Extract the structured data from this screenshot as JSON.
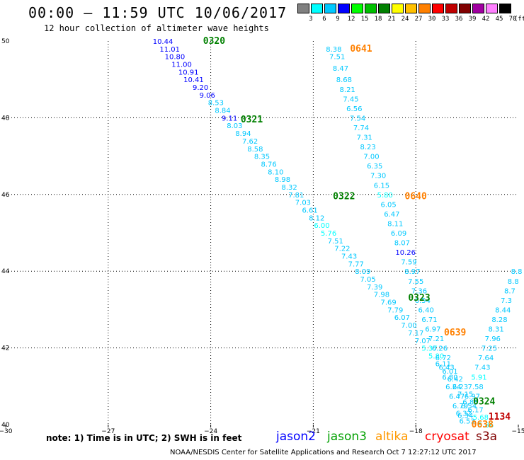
{
  "header": {
    "title": "00:00 – 11:59 UTC 10/06/2017",
    "subtitle": "12 hour collection of altimeter wave heights"
  },
  "colorbar": {
    "colors": [
      "#808080",
      "#00ffff",
      "#00c8ff",
      "#0000ff",
      "#00ff00",
      "#00c000",
      "#008000",
      "#ffff00",
      "#ffc000",
      "#ff8000",
      "#ff0000",
      "#c00000",
      "#800000",
      "#a000a0",
      "#ff80ff",
      "#000000"
    ],
    "labels": [
      "3",
      "6",
      "9",
      "12",
      "15",
      "18",
      "21",
      "24",
      "27",
      "30",
      "33",
      "36",
      "39",
      "42",
      "45",
      "70",
      "(ft)"
    ]
  },
  "map": {
    "xticks": [
      {
        "lon": -30,
        "label": "−30"
      },
      {
        "lon": -27,
        "label": "−27"
      },
      {
        "lon": -24,
        "label": "−24"
      },
      {
        "lon": -21,
        "label": "−21"
      },
      {
        "lon": -18,
        "label": "−18"
      },
      {
        "lon": -15,
        "label": "−15"
      }
    ],
    "yticks": [
      {
        "lat": 50,
        "label": "50"
      },
      {
        "lat": 48,
        "label": "48"
      },
      {
        "lat": 46,
        "label": "46"
      },
      {
        "lat": 44,
        "label": "44"
      },
      {
        "lat": 42,
        "label": "42"
      },
      {
        "lat": 40,
        "label": "40"
      }
    ],
    "observations": [
      {
        "lon": -25.4,
        "lat": 50.0,
        "t": "10.44",
        "c": "#0000ff"
      },
      {
        "lon": -25.2,
        "lat": 49.8,
        "t": "11.01",
        "c": "#0000ff"
      },
      {
        "lon": -25.05,
        "lat": 49.6,
        "t": "10.80",
        "c": "#0000ff"
      },
      {
        "lon": -24.85,
        "lat": 49.4,
        "t": "11.00",
        "c": "#0000ff"
      },
      {
        "lon": -24.65,
        "lat": 49.2,
        "t": "10.91",
        "c": "#0000ff"
      },
      {
        "lon": -24.5,
        "lat": 49.0,
        "t": "10.41",
        "c": "#0000ff"
      },
      {
        "lon": -24.3,
        "lat": 48.8,
        "t": "9.20",
        "c": "#0000ff"
      },
      {
        "lon": -24.1,
        "lat": 48.6,
        "t": "9.06",
        "c": "#0000ff"
      },
      {
        "lon": -23.85,
        "lat": 48.4,
        "t": "8.53",
        "c": "#00c8ff"
      },
      {
        "lon": -23.65,
        "lat": 48.2,
        "t": "8.84",
        "c": "#00c8ff"
      },
      {
        "lon": -23.45,
        "lat": 48.0,
        "t": "9.11",
        "c": "#0000ff"
      },
      {
        "lon": -23.3,
        "lat": 47.8,
        "t": "8.03",
        "c": "#00c8ff"
      },
      {
        "lon": -23.05,
        "lat": 47.6,
        "t": "8.94",
        "c": "#00c8ff"
      },
      {
        "lon": -22.85,
        "lat": 47.4,
        "t": "7.62",
        "c": "#00c8ff"
      },
      {
        "lon": -22.7,
        "lat": 47.2,
        "t": "8.58",
        "c": "#00c8ff"
      },
      {
        "lon": -22.5,
        "lat": 47.0,
        "t": "8.35",
        "c": "#00c8ff"
      },
      {
        "lon": -22.3,
        "lat": 46.8,
        "t": "8.76",
        "c": "#00c8ff"
      },
      {
        "lon": -22.1,
        "lat": 46.6,
        "t": "8.10",
        "c": "#00c8ff"
      },
      {
        "lon": -21.9,
        "lat": 46.4,
        "t": "8.98",
        "c": "#00c8ff"
      },
      {
        "lon": -21.7,
        "lat": 46.2,
        "t": "8.32",
        "c": "#00c8ff"
      },
      {
        "lon": -21.5,
        "lat": 46.0,
        "t": "7.81",
        "c": "#00c8ff"
      },
      {
        "lon": -21.3,
        "lat": 45.8,
        "t": "7.03",
        "c": "#00c8ff"
      },
      {
        "lon": -21.1,
        "lat": 45.6,
        "t": "6.61",
        "c": "#00c8ff"
      },
      {
        "lon": -20.9,
        "lat": 45.4,
        "t": "8.12",
        "c": "#00c8ff"
      },
      {
        "lon": -20.75,
        "lat": 45.2,
        "t": "6.00",
        "c": "#00ffff"
      },
      {
        "lon": -20.55,
        "lat": 45.0,
        "t": "5.76",
        "c": "#00ffff"
      },
      {
        "lon": -20.35,
        "lat": 44.8,
        "t": "7.51",
        "c": "#00c8ff"
      },
      {
        "lon": -20.15,
        "lat": 44.6,
        "t": "7.22",
        "c": "#00c8ff"
      },
      {
        "lon": -19.95,
        "lat": 44.4,
        "t": "7.43",
        "c": "#00c8ff"
      },
      {
        "lon": -19.75,
        "lat": 44.2,
        "t": "7.77",
        "c": "#00c8ff"
      },
      {
        "lon": -19.55,
        "lat": 44.0,
        "t": "8.09",
        "c": "#00c8ff"
      },
      {
        "lon": -19.4,
        "lat": 43.8,
        "t": "7.05",
        "c": "#00c8ff"
      },
      {
        "lon": -19.2,
        "lat": 43.6,
        "t": "7.39",
        "c": "#00c8ff"
      },
      {
        "lon": -19.0,
        "lat": 43.4,
        "t": "7.98",
        "c": "#00c8ff"
      },
      {
        "lon": -18.8,
        "lat": 43.2,
        "t": "7.69",
        "c": "#00c8ff"
      },
      {
        "lon": -18.6,
        "lat": 43.0,
        "t": "7.79",
        "c": "#00c8ff"
      },
      {
        "lon": -18.4,
        "lat": 42.8,
        "t": "6.07",
        "c": "#00c8ff"
      },
      {
        "lon": -18.2,
        "lat": 42.6,
        "t": "7.00",
        "c": "#00c8ff"
      },
      {
        "lon": -18.0,
        "lat": 42.4,
        "t": "7.17",
        "c": "#00c8ff"
      },
      {
        "lon": -17.8,
        "lat": 42.2,
        "t": "7.07",
        "c": "#00c8ff"
      },
      {
        "lon": -17.6,
        "lat": 42.0,
        "t": "5.37",
        "c": "#00ffff"
      },
      {
        "lon": -17.4,
        "lat": 41.8,
        "t": "5.80",
        "c": "#00ffff"
      },
      {
        "lon": -17.2,
        "lat": 41.6,
        "t": "6.11",
        "c": "#00c8ff"
      },
      {
        "lon": -17.0,
        "lat": 41.4,
        "t": "6.01",
        "c": "#00c8ff"
      },
      {
        "lon": -16.85,
        "lat": 41.2,
        "t": "6.42",
        "c": "#00c8ff"
      },
      {
        "lon": -16.7,
        "lat": 41.0,
        "t": "6.23",
        "c": "#00c8ff"
      },
      {
        "lon": -16.55,
        "lat": 40.8,
        "t": "7.15",
        "c": "#00c8ff"
      },
      {
        "lon": -16.4,
        "lat": 40.6,
        "t": "6.88",
        "c": "#00c8ff"
      },
      {
        "lon": -16.25,
        "lat": 40.4,
        "t": "6.17",
        "c": "#00c8ff"
      },
      {
        "lon": -16.1,
        "lat": 40.2,
        "t": "5.68",
        "c": "#00ffff"
      },
      {
        "lon": -15.95,
        "lat": 40.0,
        "t": "5.86",
        "c": "#00ffff"
      },
      {
        "lon": -20.4,
        "lat": 49.8,
        "t": "8.38",
        "c": "#00c8ff"
      },
      {
        "lon": -20.3,
        "lat": 49.6,
        "t": "7.51",
        "c": "#00c8ff"
      },
      {
        "lon": -20.2,
        "lat": 49.3,
        "t": "8.47",
        "c": "#00c8ff"
      },
      {
        "lon": -20.1,
        "lat": 49.0,
        "t": "8.68",
        "c": "#00c8ff"
      },
      {
        "lon": -20.0,
        "lat": 48.75,
        "t": "8.21",
        "c": "#00c8ff"
      },
      {
        "lon": -19.9,
        "lat": 48.5,
        "t": "7.45",
        "c": "#00c8ff"
      },
      {
        "lon": -19.8,
        "lat": 48.25,
        "t": "6.56",
        "c": "#00c8ff"
      },
      {
        "lon": -19.7,
        "lat": 48.0,
        "t": "7.54",
        "c": "#00c8ff"
      },
      {
        "lon": -19.6,
        "lat": 47.75,
        "t": "7.74",
        "c": "#00c8ff"
      },
      {
        "lon": -19.5,
        "lat": 47.5,
        "t": "7.31",
        "c": "#00c8ff"
      },
      {
        "lon": -19.4,
        "lat": 47.25,
        "t": "8.23",
        "c": "#00c8ff"
      },
      {
        "lon": -19.3,
        "lat": 47.0,
        "t": "7.00",
        "c": "#00c8ff"
      },
      {
        "lon": -19.2,
        "lat": 46.75,
        "t": "6.35",
        "c": "#00c8ff"
      },
      {
        "lon": -19.1,
        "lat": 46.5,
        "t": "7.30",
        "c": "#00c8ff"
      },
      {
        "lon": -19.0,
        "lat": 46.25,
        "t": "6.15",
        "c": "#00c8ff"
      },
      {
        "lon": -18.9,
        "lat": 46.0,
        "t": "5.80",
        "c": "#00ffff"
      },
      {
        "lon": -18.8,
        "lat": 45.75,
        "t": "6.05",
        "c": "#00c8ff"
      },
      {
        "lon": -18.7,
        "lat": 45.5,
        "t": "6.47",
        "c": "#00c8ff"
      },
      {
        "lon": -18.6,
        "lat": 45.25,
        "t": "8.11",
        "c": "#00c8ff"
      },
      {
        "lon": -18.5,
        "lat": 45.0,
        "t": "6.09",
        "c": "#00c8ff"
      },
      {
        "lon": -18.4,
        "lat": 44.75,
        "t": "8.07",
        "c": "#00c8ff"
      },
      {
        "lon": -18.3,
        "lat": 44.5,
        "t": "10.26",
        "c": "#0000ff"
      },
      {
        "lon": -18.2,
        "lat": 44.25,
        "t": "7.59",
        "c": "#00c8ff"
      },
      {
        "lon": -18.1,
        "lat": 44.0,
        "t": "8.97",
        "c": "#00c8ff"
      },
      {
        "lon": -18.0,
        "lat": 43.75,
        "t": "7.55",
        "c": "#00c8ff"
      },
      {
        "lon": -17.9,
        "lat": 43.5,
        "t": "7.36",
        "c": "#00c8ff"
      },
      {
        "lon": -17.8,
        "lat": 43.25,
        "t": "6.54",
        "c": "#00c8ff"
      },
      {
        "lon": -17.7,
        "lat": 43.0,
        "t": "6.40",
        "c": "#00c8ff"
      },
      {
        "lon": -17.6,
        "lat": 42.75,
        "t": "6.71",
        "c": "#00c8ff"
      },
      {
        "lon": -17.5,
        "lat": 42.5,
        "t": "6.97",
        "c": "#00c8ff"
      },
      {
        "lon": -17.4,
        "lat": 42.25,
        "t": "7.21",
        "c": "#00c8ff"
      },
      {
        "lon": -17.3,
        "lat": 42.0,
        "t": "6.26",
        "c": "#00c8ff"
      },
      {
        "lon": -17.2,
        "lat": 41.75,
        "t": "6.72",
        "c": "#00c8ff"
      },
      {
        "lon": -17.1,
        "lat": 41.5,
        "t": "6.43",
        "c": "#00c8ff"
      },
      {
        "lon": -17.0,
        "lat": 41.25,
        "t": "6.80",
        "c": "#00c8ff"
      },
      {
        "lon": -16.9,
        "lat": 41.0,
        "t": "6.24",
        "c": "#00c8ff"
      },
      {
        "lon": -16.8,
        "lat": 40.75,
        "t": "6.47",
        "c": "#00c8ff"
      },
      {
        "lon": -16.7,
        "lat": 40.5,
        "t": "6.79",
        "c": "#00c8ff"
      },
      {
        "lon": -16.6,
        "lat": 40.3,
        "t": "6.32",
        "c": "#00c8ff"
      },
      {
        "lon": -16.5,
        "lat": 40.1,
        "t": "6.53",
        "c": "#00c8ff"
      },
      {
        "lon": -15.05,
        "lat": 44.0,
        "t": "8.8",
        "c": "#00c8ff"
      },
      {
        "lon": -15.15,
        "lat": 43.75,
        "t": "8.8",
        "c": "#00c8ff"
      },
      {
        "lon": -15.25,
        "lat": 43.5,
        "t": "8.7",
        "c": "#00c8ff"
      },
      {
        "lon": -15.35,
        "lat": 43.25,
        "t": "7.3",
        "c": "#00c8ff"
      },
      {
        "lon": -15.45,
        "lat": 43.0,
        "t": "8.44",
        "c": "#00c8ff"
      },
      {
        "lon": -15.55,
        "lat": 42.75,
        "t": "8.28",
        "c": "#00c8ff"
      },
      {
        "lon": -15.65,
        "lat": 42.5,
        "t": "8.31",
        "c": "#00c8ff"
      },
      {
        "lon": -15.75,
        "lat": 42.25,
        "t": "7.96",
        "c": "#00c8ff"
      },
      {
        "lon": -15.85,
        "lat": 42.0,
        "t": "7.25",
        "c": "#00c8ff"
      },
      {
        "lon": -15.95,
        "lat": 41.75,
        "t": "7.64",
        "c": "#00c8ff"
      },
      {
        "lon": -16.05,
        "lat": 41.5,
        "t": "7.43",
        "c": "#00c8ff"
      },
      {
        "lon": -16.15,
        "lat": 41.25,
        "t": "5.91",
        "c": "#00ffff"
      },
      {
        "lon": -16.25,
        "lat": 41.0,
        "t": "7.58",
        "c": "#00c8ff"
      },
      {
        "lon": -16.35,
        "lat": 40.75,
        "t": "6.97",
        "c": "#00c8ff"
      },
      {
        "lon": -16.45,
        "lat": 40.5,
        "t": "6.54",
        "c": "#00c8ff"
      },
      {
        "lon": -16.55,
        "lat": 40.25,
        "t": "6.34",
        "c": "#00c8ff"
      }
    ],
    "pass_labels": [
      {
        "lon": -23.9,
        "lat": 50.0,
        "t": "0320",
        "c": "#008000"
      },
      {
        "lon": -22.8,
        "lat": 47.95,
        "t": "0321",
        "c": "#008000"
      },
      {
        "lon": -20.1,
        "lat": 45.95,
        "t": "0322",
        "c": "#008000"
      },
      {
        "lon": -17.9,
        "lat": 43.3,
        "t": "0323",
        "c": "#008000"
      },
      {
        "lon": -16.0,
        "lat": 40.6,
        "t": "0324",
        "c": "#008000"
      },
      {
        "lon": -19.6,
        "lat": 49.8,
        "t": "0641",
        "c": "#ff8000"
      },
      {
        "lon": -18.0,
        "lat": 45.95,
        "t": "0640",
        "c": "#ff8000"
      },
      {
        "lon": -16.85,
        "lat": 42.4,
        "t": "0639",
        "c": "#ff8000"
      },
      {
        "lon": -16.05,
        "lat": 40.0,
        "t": "0638",
        "c": "#ff8000"
      },
      {
        "lon": -15.55,
        "lat": 40.2,
        "t": "1134",
        "c": "#c00000"
      }
    ]
  },
  "footer": {
    "note": "note:  1) Time is in UTC;  2) SWH is in feet",
    "legend": [
      {
        "name": "jason2",
        "color": "#0000ff"
      },
      {
        "name": "jason3",
        "color": "#00a000"
      },
      {
        "name": "altika",
        "color": "#ff9900"
      },
      {
        "name": "cryosat",
        "color": "#ff0000"
      },
      {
        "name": "s3a",
        "color": "#800000"
      }
    ],
    "credit": "NOAA/NESDIS Center for Satellite Applications and Research    Oct  7 12:27:12 UTC 2017"
  }
}
